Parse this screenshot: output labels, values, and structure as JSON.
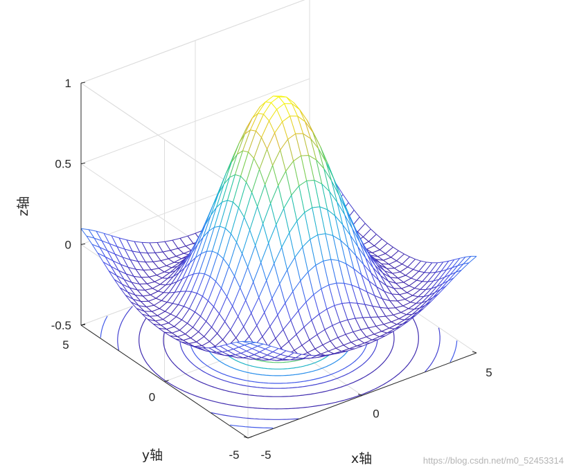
{
  "chart_data": {
    "type": "surface-mesh-with-contour",
    "function": "sin(r)/r, r = sqrt(x^2 + y^2)",
    "grid_points": 31,
    "xlim": [
      -5,
      5
    ],
    "ylim": [
      -5,
      5
    ],
    "zlim": [
      -0.5,
      1
    ],
    "xlabel": "x轴",
    "ylabel": "y轴",
    "zlabel": "z轴",
    "x_ticks": [
      "-5",
      "0",
      "5"
    ],
    "y_ticks": [
      "-5",
      "0",
      "5"
    ],
    "z_ticks": [
      "-0.5",
      "0",
      "0.5",
      "1"
    ],
    "x_tick_values": [
      -5,
      0,
      5
    ],
    "y_tick_values": [
      -5,
      0,
      5
    ],
    "z_tick_values": [
      -0.5,
      0,
      0.5,
      1
    ],
    "z_peak": 1.0,
    "z_corner": 0.12,
    "z_ring_min": -0.22,
    "contour_levels": [
      -0.2,
      -0.1,
      0.0,
      0.2,
      0.4,
      0.6,
      0.8
    ],
    "colormap": "parula",
    "grid": true
  },
  "watermark": "https://blog.csdn.net/m0_52453314"
}
